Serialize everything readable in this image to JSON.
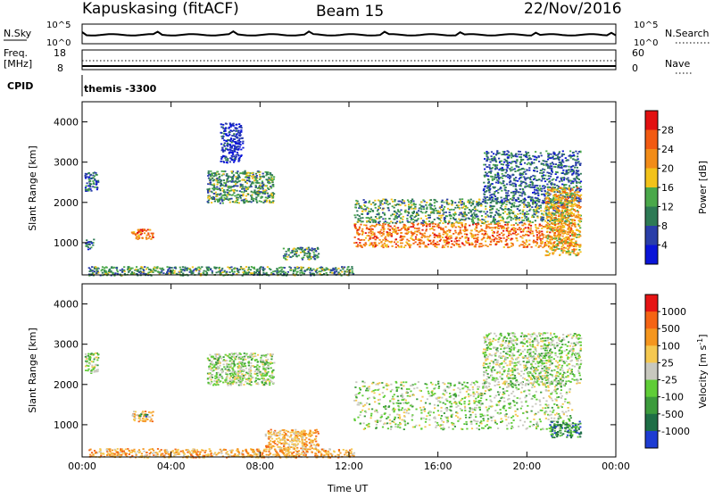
{
  "header": {
    "station": "Kapuskasing (fitACF)",
    "beam": "Beam 15",
    "date": "22/Nov/2016"
  },
  "strip_top": {
    "left_label": "N.Sky",
    "left_ticks": [
      "10^5",
      "10^0"
    ],
    "right_ticks": [
      "10^5",
      "10^0"
    ],
    "right_label": "N.Search"
  },
  "strip_freq": {
    "left_label_1": "Freq.",
    "left_label_2": "[MHz]",
    "left_ticks": [
      "18",
      "8"
    ],
    "right_ticks": [
      "60",
      "0"
    ],
    "right_label": "Nave"
  },
  "cpid": {
    "label": "CPID",
    "value": "themis -3300"
  },
  "chart_data": [
    {
      "type": "heatmap",
      "panel": "power",
      "ylabel": "Slant Range [km]",
      "xlabel": "Time UT",
      "ylim": [
        200,
        4500
      ],
      "xlim_hours": [
        0,
        24
      ],
      "x_ticks": [
        "00:00",
        "04:00",
        "08:00",
        "12:00",
        "16:00",
        "20:00",
        "00:00"
      ],
      "y_ticks": [
        "1000",
        "2000",
        "3000",
        "4000"
      ],
      "colorbar_label": "Power [dB]",
      "colorbar_ticks": [
        "4",
        "8",
        "12",
        "16",
        "20",
        "24",
        "28"
      ],
      "colorbar_colors": [
        "#0a14d8",
        "#2a3ea8",
        "#2e7a55",
        "#4aa84a",
        "#f2c21a",
        "#f28c18",
        "#f25a12",
        "#e21010"
      ],
      "regions": [
        {
          "t": [
            0.1,
            0.7
          ],
          "r": [
            2300,
            2800
          ],
          "level": 2
        },
        {
          "t": [
            0.1,
            0.5
          ],
          "r": [
            850,
            1100
          ],
          "level": 2
        },
        {
          "t": [
            2.2,
            3.2
          ],
          "r": [
            1100,
            1350
          ],
          "level": 6
        },
        {
          "t": [
            5.6,
            8.6
          ],
          "r": [
            2000,
            2800
          ],
          "level": 3
        },
        {
          "t": [
            6.2,
            7.2
          ],
          "r": [
            3000,
            4000
          ],
          "level": 1
        },
        {
          "t": [
            9.0,
            10.6
          ],
          "r": [
            600,
            900
          ],
          "level": 3
        },
        {
          "t": [
            12.2,
            22.0
          ],
          "r": [
            900,
            1500
          ],
          "level": 6
        },
        {
          "t": [
            12.2,
            22.0
          ],
          "r": [
            1500,
            2100
          ],
          "level": 3
        },
        {
          "t": [
            18.0,
            22.4
          ],
          "r": [
            2000,
            3300
          ],
          "level": 2
        },
        {
          "t": [
            20.8,
            22.4
          ],
          "r": [
            700,
            2400
          ],
          "level": 5
        },
        {
          "t": [
            0.2,
            12.2
          ],
          "r": [
            200,
            420
          ],
          "level": 3
        }
      ]
    },
    {
      "type": "heatmap",
      "panel": "velocity",
      "ylabel": "Slant Range [km]",
      "xlabel": "Time UT",
      "ylim": [
        200,
        4500
      ],
      "xlim_hours": [
        0,
        24
      ],
      "x_ticks": [
        "00:00",
        "04:00",
        "08:00",
        "12:00",
        "16:00",
        "20:00",
        "00:00"
      ],
      "y_ticks": [
        "1000",
        "2000",
        "3000",
        "4000"
      ],
      "colorbar_label": "Velocity [m s^-1]",
      "colorbar_ticks": [
        "1000",
        "500",
        "100",
        "25",
        "-25",
        "-100",
        "-500",
        "-1000"
      ],
      "colorbar_colors": [
        "#1e3cd2",
        "#1e6e46",
        "#3c9b3c",
        "#5fcd37",
        "#c8c8be",
        "#f5c850",
        "#f5961e",
        "#f56414",
        "#e61414"
      ],
      "regions": [
        {
          "t": [
            0.1,
            0.7
          ],
          "r": [
            2300,
            2800
          ],
          "level": 4
        },
        {
          "t": [
            2.2,
            3.2
          ],
          "r": [
            1100,
            1350
          ],
          "level": 6
        },
        {
          "t": [
            2.5,
            2.9
          ],
          "r": [
            1200,
            1300
          ],
          "level": 2
        },
        {
          "t": [
            5.6,
            8.6
          ],
          "r": [
            2000,
            2800
          ],
          "level": 4
        },
        {
          "t": [
            12.2,
            22.0
          ],
          "r": [
            900,
            2100
          ],
          "level": 4
        },
        {
          "t": [
            18.0,
            22.4
          ],
          "r": [
            2000,
            3300
          ],
          "level": 4
        },
        {
          "t": [
            21.0,
            22.4
          ],
          "r": [
            700,
            1100
          ],
          "level": 2
        },
        {
          "t": [
            8.2,
            10.6
          ],
          "r": [
            400,
            900
          ],
          "level": 6
        },
        {
          "t": [
            0.2,
            12.2
          ],
          "r": [
            200,
            420
          ],
          "level": 6
        }
      ]
    }
  ]
}
